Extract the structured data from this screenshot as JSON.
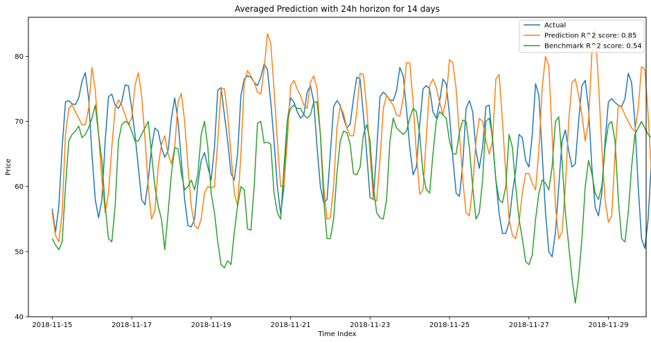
{
  "chart_data": {
    "type": "line",
    "title": "Averaged Prediction with 24h horizon for 14 days",
    "xlabel": "Time Index",
    "ylabel": "Price",
    "xlim": [
      -0.6,
      14.95
    ],
    "ylim": [
      40,
      86
    ],
    "x_ticks": [
      {
        "value": 0,
        "label": "2018-11-15"
      },
      {
        "value": 2,
        "label": "2018-11-17"
      },
      {
        "value": 4,
        "label": "2018-11-19"
      },
      {
        "value": 6,
        "label": "2018-11-21"
      },
      {
        "value": 8,
        "label": "2018-11-23"
      },
      {
        "value": 10,
        "label": "2018-11-25"
      },
      {
        "value": 12,
        "label": "2018-11-27"
      },
      {
        "value": 14,
        "label": "2018-11-29"
      }
    ],
    "y_ticks": [
      40,
      50,
      60,
      70,
      80
    ],
    "x_unit": "days since 2018-11-15 00:00 (hourly samples)",
    "legend": {
      "placement": "top-right"
    },
    "grid": false,
    "series": [
      {
        "name": "Actual",
        "color": "#1f77b4",
        "x_start": 0,
        "x_step": 0.0833333,
        "values": [
          56.6,
          53,
          57,
          66,
          73,
          73.2,
          72.7,
          72.6,
          73.6,
          76.2,
          77.5,
          73.5,
          65,
          58,
          55.2,
          58,
          67,
          73.8,
          74.2,
          72.5,
          72,
          73,
          75.6,
          75.5,
          72,
          68,
          63,
          58,
          57.2,
          61,
          66,
          69,
          68.5,
          66,
          64.5,
          65.5,
          70.5,
          73.6,
          70,
          64,
          58,
          54,
          53.8,
          55,
          60.5,
          64,
          65.2,
          63,
          61,
          66,
          74.8,
          75.2,
          71,
          67,
          62,
          61,
          65,
          74,
          76.5,
          77,
          76.8,
          76,
          75.5,
          76.8,
          78.8,
          78,
          73,
          67,
          60,
          55.8,
          60,
          70,
          73.6,
          73,
          71.5,
          70.5,
          71,
          74.5,
          75.5,
          73,
          66,
          60,
          57.5,
          58,
          65,
          72.3,
          73.2,
          72.5,
          70.5,
          69,
          69.6,
          73.5,
          76.8,
          76.5,
          71,
          65,
          58.3,
          58,
          65.5,
          73.8,
          74.5,
          74,
          73.3,
          73.2,
          74.7,
          78.3,
          77,
          72,
          66,
          61.8,
          63,
          69.5,
          75,
          75.5,
          75,
          71.5,
          70.5,
          73,
          76.5,
          75.8,
          71,
          64.5,
          59,
          58.5,
          63.5,
          72,
          73.2,
          71.5,
          65.5,
          62.8,
          66,
          72.3,
          72.5,
          67,
          61,
          55.8,
          52.8,
          52.8,
          54.5,
          59,
          62.5,
          68,
          67.5,
          64,
          63,
          68,
          75.8,
          74,
          65,
          56,
          50,
          49.2,
          53,
          60,
          67,
          68.7,
          65.5,
          63,
          63.5,
          70,
          75.5,
          76.3,
          72,
          63,
          56.8,
          55.5,
          59,
          67,
          73,
          73.5,
          72.9,
          72.5,
          72.3,
          73.5,
          77.4,
          76,
          70,
          60,
          52,
          50.5,
          55,
          64,
          72.5,
          73,
          72,
          70,
          70,
          72,
          75,
          76.7,
          72,
          63,
          56,
          52.5,
          50,
          51,
          57,
          64,
          71.4
        ]
      },
      {
        "name": "Prediction R^2 score: 0.85",
        "color": "#ff7f0e",
        "x_start": 0,
        "x_step": 0.0833333,
        "values": [
          56,
          52.5,
          51.5,
          56,
          68,
          72,
          72.6,
          71.5,
          70.5,
          69.5,
          69.5,
          72,
          78.3,
          74.8,
          68,
          61,
          56,
          59,
          66,
          72,
          73.3,
          72.5,
          71,
          69.5,
          70.5,
          75.5,
          77.5,
          74,
          67.5,
          60,
          55,
          56.3,
          63,
          66.5,
          67.8,
          65,
          63.5,
          66,
          73,
          74.3,
          70,
          63,
          57,
          54,
          53.5,
          55,
          59,
          60,
          59.8,
          60,
          67,
          75,
          75,
          71,
          65,
          59,
          57,
          65,
          76,
          77.8,
          77,
          76,
          74.5,
          74.2,
          78,
          83.5,
          82,
          75,
          67,
          60,
          60.2,
          67,
          75.5,
          76.3,
          75,
          74,
          72.5,
          72,
          76,
          77,
          75,
          68,
          60,
          55,
          55.2,
          60,
          69,
          72.3,
          71.2,
          69,
          67.8,
          67.8,
          71.5,
          77.4,
          77.2,
          72,
          65,
          58,
          57.8,
          64,
          72,
          74,
          73.2,
          72.5,
          71,
          70.8,
          73.5,
          79,
          79,
          73,
          65,
          58.8,
          59.5,
          67.5,
          75.5,
          76.5,
          75.2,
          73,
          71,
          73.5,
          79.5,
          79,
          75,
          68,
          61,
          56,
          55.5,
          60,
          67,
          70.5,
          70,
          67,
          65,
          67,
          76.5,
          77.2,
          70,
          62,
          55,
          52.5,
          52,
          54.5,
          59,
          62,
          62,
          60.5,
          59.5,
          65.5,
          75.2,
          80,
          78.5,
          68,
          57,
          52,
          53,
          60,
          70,
          76,
          76.5,
          74,
          71,
          67,
          70,
          80.5,
          84.3,
          76,
          66,
          58,
          54.5,
          55.5,
          65,
          72.5,
          72.2,
          71,
          70,
          69,
          68.5,
          72,
          78.4,
          78,
          71,
          62,
          55.5,
          54,
          56,
          63,
          72.5,
          73.5,
          71,
          68.5,
          68,
          70,
          74.5,
          76.5,
          74,
          66,
          58,
          54,
          51.5,
          53,
          58,
          66.5,
          71.5
        ]
      },
      {
        "name": "Benchmark R^2 score: 0.54",
        "color": "#2ca02c",
        "x_start": 0,
        "x_step": 0.0833333,
        "values": [
          52,
          51,
          50.3,
          51.5,
          60,
          67,
          68,
          68.5,
          69.3,
          67.5,
          68,
          69,
          70.5,
          72.5,
          68,
          64,
          57,
          52,
          51.5,
          57,
          67,
          69.5,
          70,
          69.8,
          68.5,
          67,
          67,
          68,
          69,
          70,
          65,
          60,
          57,
          55,
          50.3,
          56,
          62,
          66,
          65.8,
          62,
          59.5,
          60,
          61,
          59.5,
          62,
          68,
          70,
          66,
          59,
          56,
          51.5,
          48,
          47.5,
          48.6,
          48,
          53,
          57,
          60,
          59.5,
          53.5,
          53.3,
          60,
          69.7,
          70,
          66.7,
          66.8,
          66.5,
          59,
          56,
          55,
          63,
          70.2,
          72,
          72.5,
          72,
          72,
          71,
          70.5,
          71,
          73,
          73,
          68,
          58,
          52,
          52,
          55,
          62,
          67,
          68.5,
          68.3,
          66.5,
          62,
          61.8,
          63,
          68,
          69.5,
          67,
          60,
          56,
          55.2,
          55,
          58,
          67,
          70.5,
          69,
          68.5,
          68,
          68.5,
          70.5,
          72,
          71.5,
          68,
          62,
          59.5,
          59,
          65,
          70,
          71.5,
          71,
          70.5,
          67,
          65,
          65,
          68.3,
          70.2,
          70,
          66,
          60,
          55,
          56,
          61,
          70,
          70.5,
          67.5,
          61,
          58,
          57.5,
          60,
          68,
          66,
          60,
          55,
          52,
          48.5,
          48,
          49.5,
          55,
          59,
          61,
          60.5,
          59.5,
          63,
          70,
          70.7,
          64,
          56,
          51,
          46,
          42.1,
          46,
          52,
          60,
          64,
          62,
          59,
          58,
          60,
          66,
          69.5,
          70,
          67,
          58,
          52,
          51.5,
          56,
          63,
          68,
          69,
          70,
          69,
          68,
          67.5,
          69,
          71.5,
          70,
          65,
          57,
          49,
          48.5,
          49,
          58,
          67,
          69.3,
          67,
          65.5,
          65.5,
          66,
          70,
          70.5,
          68,
          60,
          53,
          47,
          46.8,
          53,
          60,
          67.5
        ]
      }
    ]
  }
}
